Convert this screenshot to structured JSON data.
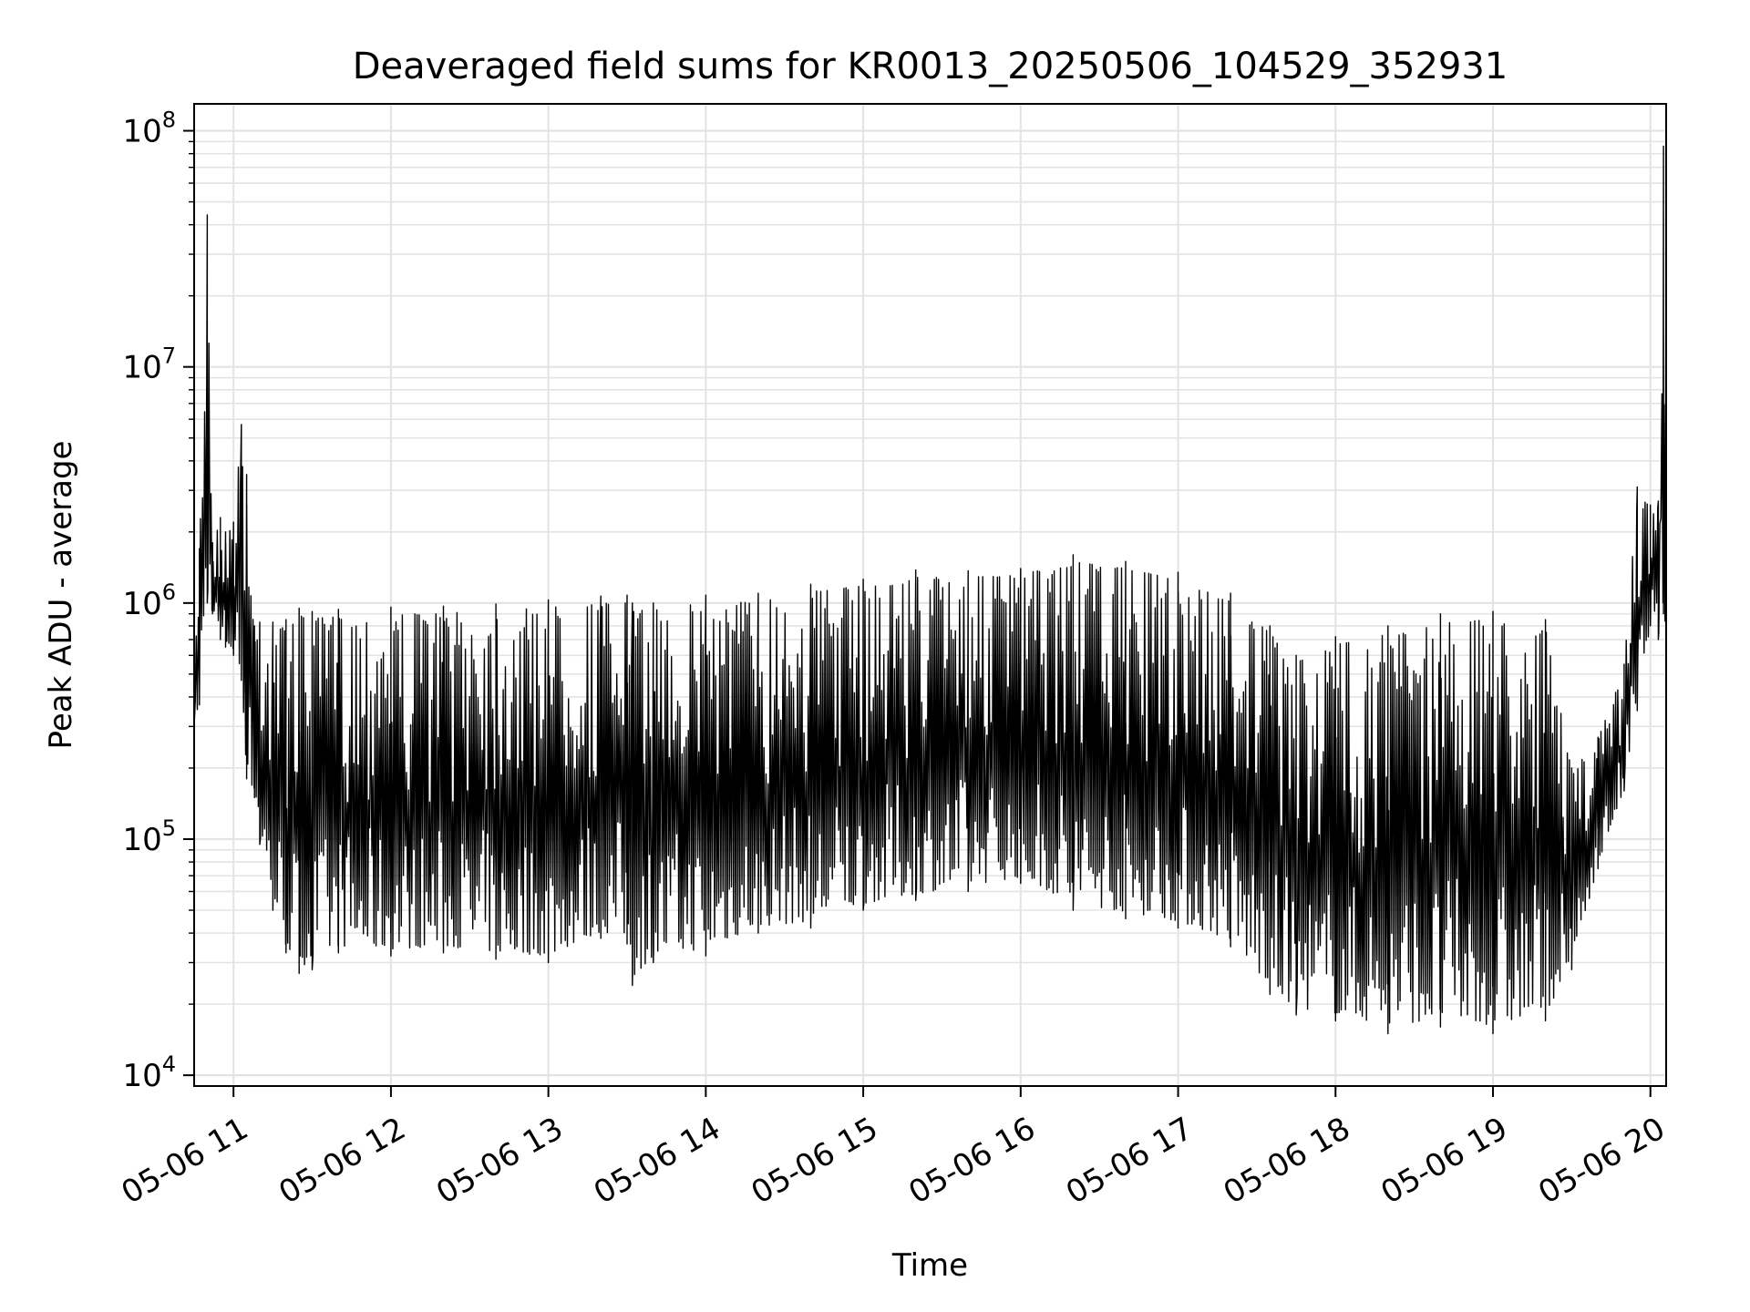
{
  "chart_data": {
    "type": "line",
    "title": "Deaveraged field sums for KR0013_20250506_104529_352931",
    "xlabel": "Time",
    "ylabel": "Peak ADU - average",
    "y_scale": "log",
    "ylim": [
      9000,
      130000000
    ],
    "xlim": [
      "05-06 10:45",
      "05-06 20:06"
    ],
    "grid": true,
    "grid_color": "#e3e3e3",
    "line_color": "#000000",
    "x_ticks": [
      "05-06 11",
      "05-06 12",
      "05-06 13",
      "05-06 14",
      "05-06 15",
      "05-06 16",
      "05-06 17",
      "05-06 18",
      "05-06 19",
      "05-06 20"
    ],
    "y_ticks": [
      {
        "value": 10000,
        "base": "10",
        "exp": "4"
      },
      {
        "value": 100000,
        "base": "10",
        "exp": "5"
      },
      {
        "value": 1000000,
        "base": "10",
        "exp": "6"
      },
      {
        "value": 10000000,
        "base": "10",
        "exp": "7"
      },
      {
        "value": 100000000,
        "base": "10",
        "exp": "8"
      }
    ],
    "series": [
      {
        "x": [
          "05-06 10:45",
          "05-06 10:47",
          "05-06 10:50",
          "05-06 10:52",
          "05-06 10:55",
          "05-06 10:57",
          "05-06 11:00",
          "05-06 11:03",
          "05-06 11:05",
          "05-06 11:08",
          "05-06 11:10",
          "05-06 11:15",
          "05-06 11:20",
          "05-06 11:25",
          "05-06 11:30",
          "05-06 11:40",
          "05-06 12:00",
          "05-06 12:20",
          "05-06 12:40",
          "05-06 13:00",
          "05-06 13:20",
          "05-06 13:30",
          "05-06 13:32",
          "05-06 13:40",
          "05-06 14:00",
          "05-06 14:20",
          "05-06 14:40",
          "05-06 15:00",
          "05-06 15:20",
          "05-06 15:40",
          "05-06 16:00",
          "05-06 16:20",
          "05-06 16:40",
          "05-06 17:00",
          "05-06 17:20",
          "05-06 17:35",
          "05-06 17:45",
          "05-06 18:00",
          "05-06 18:20",
          "05-06 18:40",
          "05-06 19:00",
          "05-06 19:20",
          "05-06 19:30",
          "05-06 19:40",
          "05-06 19:50",
          "05-06 19:55",
          "05-06 20:00",
          "05-06 20:03",
          "05-06 20:05",
          "05-06 20:06"
        ],
        "high": [
          450000,
          1700000,
          44000000,
          1800000,
          2300000,
          2000000,
          2200000,
          5700000,
          3500000,
          800000,
          830000,
          830000,
          850000,
          950000,
          920000,
          940000,
          960000,
          970000,
          990000,
          1030000,
          1070000,
          1080000,
          1000000,
          1000000,
          1080000,
          1100000,
          1200000,
          1260000,
          1380000,
          1370000,
          1400000,
          1600000,
          1500000,
          1350000,
          1100000,
          800000,
          600000,
          720000,
          800000,
          900000,
          920000,
          850000,
          200000,
          270000,
          550000,
          3100000,
          2600000,
          2700000,
          86000000,
          86000000
        ],
        "low": [
          300000,
          370000,
          1000000,
          900000,
          700000,
          650000,
          600000,
          470000,
          180000,
          150000,
          95000,
          50000,
          33000,
          27000,
          28000,
          33000,
          32000,
          33000,
          31000,
          30000,
          38000,
          36000,
          24000,
          30000,
          32000,
          40000,
          42000,
          50000,
          55000,
          60000,
          65000,
          50000,
          46000,
          42000,
          35000,
          22000,
          18000,
          17000,
          15000,
          16000,
          15000,
          17000,
          28000,
          75000,
          160000,
          350000,
          800000,
          700000,
          900000,
          380000
        ]
      }
    ]
  }
}
